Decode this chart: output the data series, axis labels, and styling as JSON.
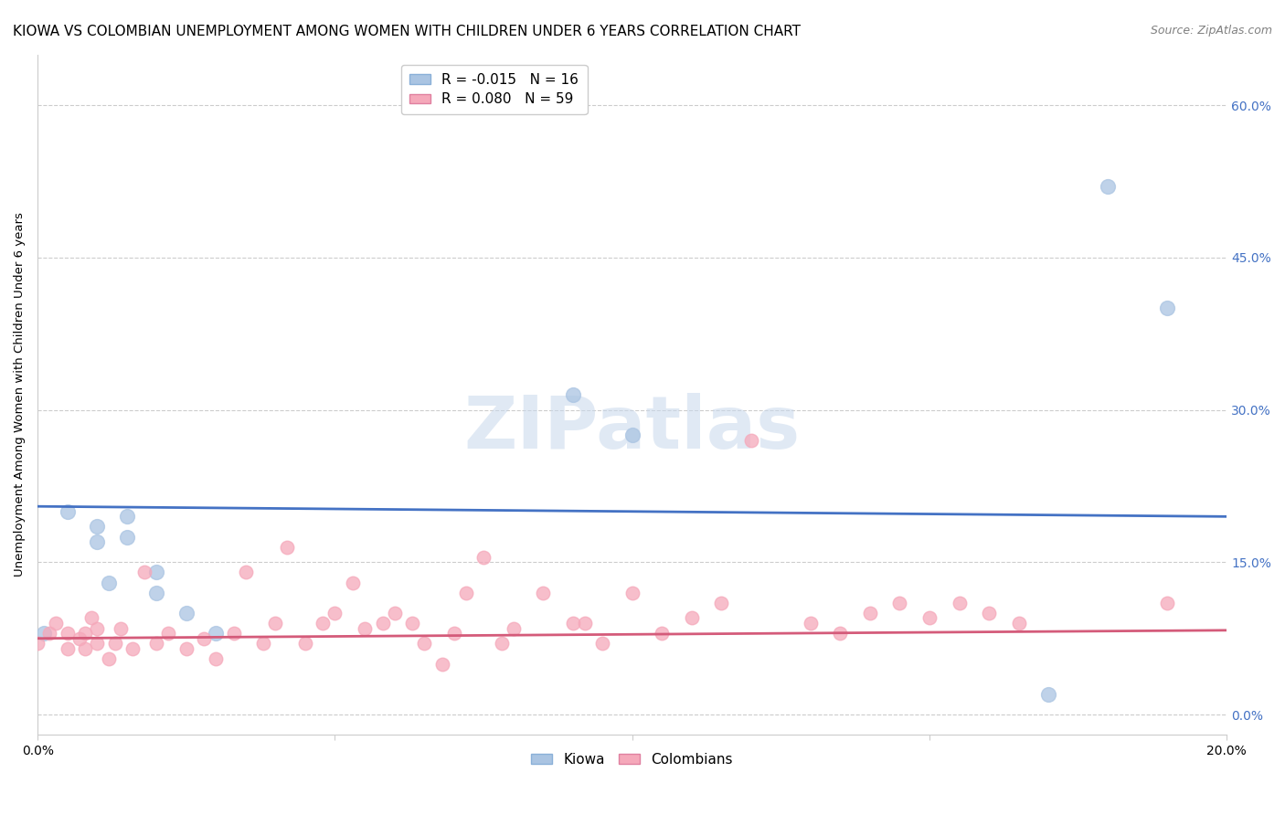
{
  "title": "KIOWA VS COLOMBIAN UNEMPLOYMENT AMONG WOMEN WITH CHILDREN UNDER 6 YEARS CORRELATION CHART",
  "source": "Source: ZipAtlas.com",
  "ylabel": "Unemployment Among Women with Children Under 6 years",
  "xlim": [
    0.0,
    0.2
  ],
  "ylim": [
    -0.02,
    0.65
  ],
  "yticks": [
    0.0,
    0.15,
    0.3,
    0.45,
    0.6
  ],
  "ytick_labels_right": [
    "0.0%",
    "15.0%",
    "30.0%",
    "45.0%",
    "60.0%"
  ],
  "xticks": [
    0.0,
    0.05,
    0.1,
    0.15,
    0.2
  ],
  "xtick_labels": [
    "0.0%",
    "",
    "",
    "",
    "20.0%"
  ],
  "kiowa_R": -0.015,
  "kiowa_N": 16,
  "colombian_R": 0.08,
  "colombian_N": 59,
  "kiowa_color": "#aac4e2",
  "colombian_color": "#f5a8ba",
  "kiowa_line_color": "#4472c4",
  "colombian_line_color": "#d45b7a",
  "kiowa_line_intercept": 0.205,
  "kiowa_line_slope": -0.05,
  "colombian_line_intercept": 0.075,
  "colombian_line_slope": 0.04,
  "kiowa_x": [
    0.001,
    0.005,
    0.01,
    0.01,
    0.012,
    0.015,
    0.015,
    0.02,
    0.02,
    0.025,
    0.03,
    0.09,
    0.1,
    0.17,
    0.18,
    0.19
  ],
  "kiowa_y": [
    0.08,
    0.2,
    0.185,
    0.17,
    0.13,
    0.195,
    0.175,
    0.14,
    0.12,
    0.1,
    0.08,
    0.315,
    0.275,
    0.02,
    0.52,
    0.4
  ],
  "colombian_x": [
    0.0,
    0.002,
    0.003,
    0.005,
    0.005,
    0.007,
    0.008,
    0.008,
    0.009,
    0.01,
    0.01,
    0.012,
    0.013,
    0.014,
    0.016,
    0.018,
    0.02,
    0.022,
    0.025,
    0.028,
    0.03,
    0.033,
    0.035,
    0.038,
    0.04,
    0.042,
    0.045,
    0.048,
    0.05,
    0.053,
    0.055,
    0.058,
    0.06,
    0.063,
    0.065,
    0.068,
    0.07,
    0.072,
    0.075,
    0.078,
    0.08,
    0.085,
    0.09,
    0.092,
    0.095,
    0.1,
    0.105,
    0.11,
    0.115,
    0.12,
    0.13,
    0.135,
    0.14,
    0.145,
    0.15,
    0.155,
    0.16,
    0.165,
    0.19
  ],
  "colombian_y": [
    0.07,
    0.08,
    0.09,
    0.065,
    0.08,
    0.075,
    0.065,
    0.08,
    0.095,
    0.07,
    0.085,
    0.055,
    0.07,
    0.085,
    0.065,
    0.14,
    0.07,
    0.08,
    0.065,
    0.075,
    0.055,
    0.08,
    0.14,
    0.07,
    0.09,
    0.165,
    0.07,
    0.09,
    0.1,
    0.13,
    0.085,
    0.09,
    0.1,
    0.09,
    0.07,
    0.05,
    0.08,
    0.12,
    0.155,
    0.07,
    0.085,
    0.12,
    0.09,
    0.09,
    0.07,
    0.12,
    0.08,
    0.095,
    0.11,
    0.27,
    0.09,
    0.08,
    0.1,
    0.11,
    0.095,
    0.11,
    0.1,
    0.09,
    0.11
  ],
  "watermark": "ZIPatlas",
  "background_color": "#ffffff",
  "grid_color": "#cccccc",
  "title_fontsize": 11,
  "axis_label_fontsize": 9.5,
  "tick_fontsize": 10,
  "legend_fontsize": 11
}
